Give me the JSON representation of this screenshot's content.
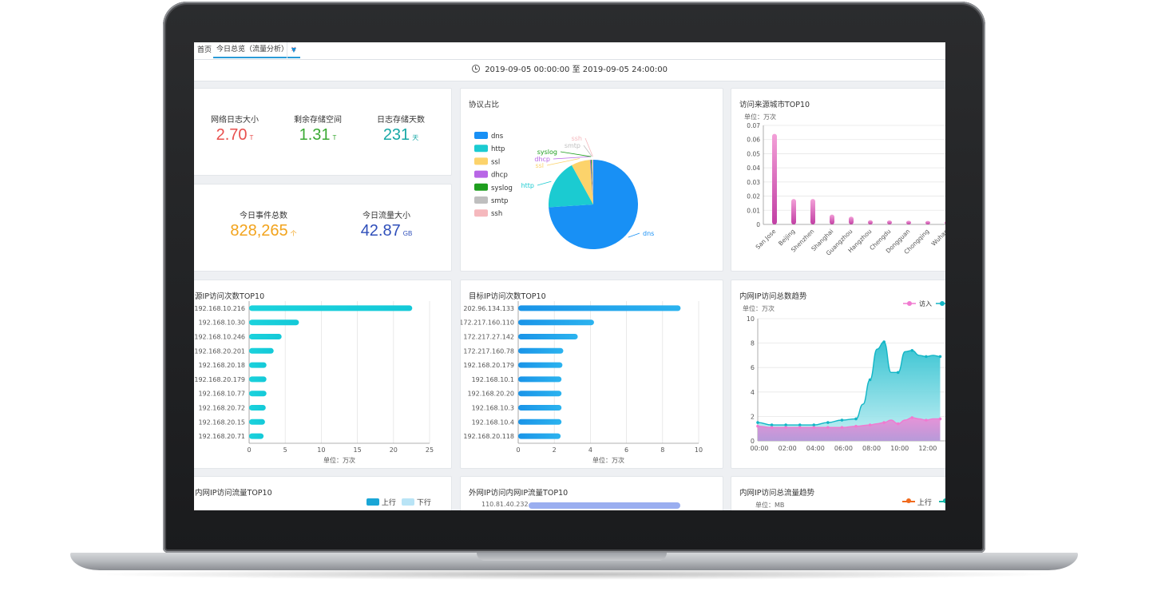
{
  "tabs": {
    "home_label": "首页",
    "active_label": "今日总览（流量分析）",
    "close_glyph": "×"
  },
  "date_range": {
    "start": "2019-09-05 00:00:00",
    "separator": "至",
    "end": "2019-09-05 24:00:00"
  },
  "stats_top": [
    {
      "label": "网络日志大小",
      "value": "2.70",
      "unit": "T",
      "color": "#e8504e"
    },
    {
      "label": "剩余存储空间",
      "value": "1.31",
      "unit": "T",
      "color": "#3aa933"
    },
    {
      "label": "日志存储天数",
      "value": "231",
      "unit": "天",
      "color": "#17a8a6"
    }
  ],
  "stats_mid": [
    {
      "label": "今日事件总数",
      "value": "828,265",
      "unit": "个",
      "color": "#f2a31c"
    },
    {
      "label": "今日流量大小",
      "value": "42.87",
      "unit": "GB",
      "color": "#2f4fba"
    }
  ],
  "charts": {
    "protocol": {
      "title": "协议占比",
      "chart_data": {
        "type": "pie",
        "legend": [
          "dns",
          "http",
          "ssl",
          "dhcp",
          "syslog",
          "smtp",
          "ssh"
        ],
        "colors": [
          "#1890f5",
          "#1bcbd1",
          "#fcd36b",
          "#b866e6",
          "#1e9e1e",
          "#bfbfbf",
          "#f5b8bd"
        ],
        "values": [
          74,
          18,
          6.8,
          0.3,
          0.3,
          0.3,
          0.3
        ]
      }
    },
    "city": {
      "title": "访问来源城市TOP10",
      "unit": "单位：万次",
      "chart_data": {
        "type": "bar",
        "categories": [
          "San Jose",
          "Beijing",
          "Shenzhen",
          "Shanghai",
          "Guangzhou",
          "Hangzhou",
          "Chengdu",
          "Dongguan",
          "Chongqing",
          "Wuhan"
        ],
        "values": [
          0.064,
          0.018,
          0.018,
          0.007,
          0.0055,
          0.003,
          0.0028,
          0.0026,
          0.0025,
          0.0024
        ],
        "ylim": [
          0,
          0.07
        ],
        "yticks": [
          "0",
          "0.01",
          "0.02",
          "0.03",
          "0.04",
          "0.05",
          "0.06",
          "0.07"
        ]
      }
    },
    "src_ip": {
      "title": "源IP访问次数TOP10",
      "xlabel": "单位：万次",
      "chart_data": {
        "type": "bar",
        "categories": [
          "192.168.10.216",
          "192.168.10.30",
          "192.168.10.246",
          "192.168.20.201",
          "192.168.20.18",
          "192.168.20.179",
          "192.168.10.77",
          "192.168.20.72",
          "192.168.20.15",
          "192.168.20.71"
        ],
        "values": [
          22.6,
          6.9,
          4.5,
          3.4,
          2.4,
          2.4,
          2.4,
          2.3,
          2.2,
          2.0
        ],
        "xlim": [
          0,
          25
        ],
        "xticks": [
          "0",
          "5",
          "10",
          "15",
          "20",
          "25"
        ]
      }
    },
    "dst_ip": {
      "title": "目标IP访问次数TOP10",
      "xlabel": "单位：万次",
      "chart_data": {
        "type": "bar",
        "categories": [
          "202.96.134.133",
          "172.217.160.110",
          "172.217.27.142",
          "172.217.160.78",
          "192.168.20.179",
          "192.168.10.1",
          "192.168.20.20",
          "192.168.10.3",
          "192.168.10.4",
          "192.168.20.118"
        ],
        "values": [
          9.0,
          4.2,
          3.3,
          2.5,
          2.45,
          2.4,
          2.4,
          2.4,
          2.4,
          2.35
        ],
        "xlim": [
          0,
          10
        ],
        "xticks": [
          "0",
          "2",
          "4",
          "6",
          "8",
          "10"
        ]
      }
    },
    "intranet_trend": {
      "title": "内网IP访问总数趋势",
      "unit": "单位：万次",
      "chart_data": {
        "type": "area",
        "x_labels": [
          "00:00",
          "02:00",
          "04:00",
          "06:00",
          "08:00",
          "10:00",
          "12:00"
        ],
        "ylim": [
          0,
          10
        ],
        "yticks": [
          "0",
          "2",
          "4",
          "6",
          "8",
          "10"
        ],
        "series": [
          {
            "name": "访入",
            "color": "#f07ad0",
            "x": [
              0,
              1,
              2,
              3,
              4,
              5,
              6,
              7,
              8,
              8.5,
              9,
              9.5,
              10,
              10.5,
              11,
              11.5,
              12,
              12.5,
              13
            ],
            "values": [
              1.2,
              1.1,
              1.1,
              1.1,
              1.1,
              1.1,
              1.1,
              1.2,
              1.3,
              1.4,
              1.5,
              1.7,
              1.4,
              1.7,
              1.9,
              1.8,
              1.7,
              1.8,
              1.8
            ]
          },
          {
            "name": "",
            "color": "#13b6c6",
            "x": [
              0,
              1,
              2,
              3,
              4,
              5,
              6,
              7,
              7.5,
              8,
              8.5,
              9,
              9.5,
              10,
              10.5,
              11,
              11.5,
              12,
              12.5,
              13
            ],
            "values": [
              1.5,
              1.3,
              1.3,
              1.3,
              1.3,
              1.5,
              1.7,
              1.8,
              3,
              5,
              7.5,
              8.1,
              5.6,
              5.6,
              7.3,
              7.4,
              7,
              6.9,
              7,
              6.9
            ]
          }
        ]
      }
    },
    "intranet_flow": {
      "title": "内网IP访问流量TOP10",
      "legend": [
        "上行",
        "下行"
      ],
      "legend_colors": [
        "#1aa6d6",
        "#b9e4f6"
      ]
    },
    "external_flow": {
      "title": "外网IP访问内网IP流量TOP10",
      "first_ip": "110.81.40.232"
    },
    "flow_trend": {
      "title": "内网IP访问总流量趋势",
      "unit": "单位：MB",
      "legend": [
        "上行"
      ],
      "legend_colors": [
        "#f06a1d",
        "#13b6a6"
      ]
    }
  }
}
